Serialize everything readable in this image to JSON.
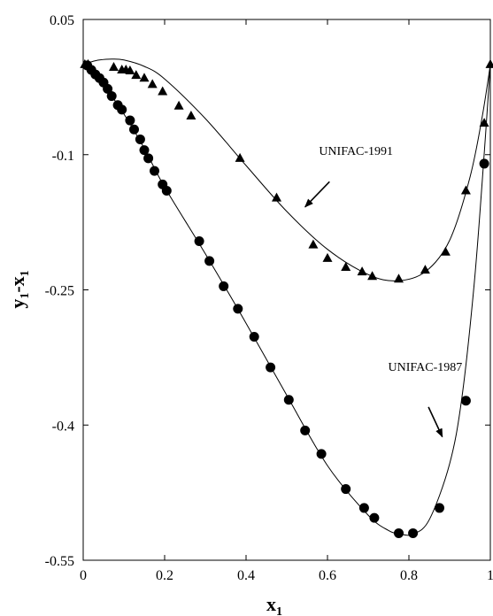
{
  "chart_data": {
    "type": "scatter",
    "xlabel": "x",
    "xlabel_sub": "1",
    "ylabel_parts": [
      "y",
      "1",
      "-x",
      "1"
    ],
    "xlim": [
      0,
      1
    ],
    "ylim": [
      -0.55,
      0.05
    ],
    "x_ticks": [
      {
        "value": 0,
        "label": "0"
      },
      {
        "value": 0.2,
        "label": "0.2"
      },
      {
        "value": 0.4,
        "label": "0.4"
      },
      {
        "value": 0.6,
        "label": "0.6"
      },
      {
        "value": 0.8,
        "label": "0.8"
      },
      {
        "value": 1,
        "label": "1"
      }
    ],
    "y_ticks": [
      {
        "value": 0.05,
        "label": "0.05"
      },
      {
        "value": -0.1,
        "label": "-0.1"
      },
      {
        "value": -0.25,
        "label": "-0.25"
      },
      {
        "value": -0.4,
        "label": "-0.4"
      },
      {
        "value": -0.55,
        "label": "-0.55"
      }
    ],
    "grid": false,
    "legend": "none",
    "series": [
      {
        "marker": "triangle",
        "points": [
          [
            0.004,
            0.0
          ],
          [
            0.012,
            0.0
          ],
          [
            0.075,
            -0.003
          ],
          [
            0.095,
            -0.006
          ],
          [
            0.105,
            -0.006
          ],
          [
            0.115,
            -0.007
          ],
          [
            0.13,
            -0.012
          ],
          [
            0.15,
            -0.015
          ],
          [
            0.17,
            -0.022
          ],
          [
            0.195,
            -0.03
          ],
          [
            0.235,
            -0.046
          ],
          [
            0.265,
            -0.057
          ],
          [
            0.385,
            -0.104
          ],
          [
            0.475,
            -0.148
          ],
          [
            0.565,
            -0.2
          ],
          [
            0.6,
            -0.215
          ],
          [
            0.645,
            -0.225
          ],
          [
            0.685,
            -0.23
          ],
          [
            0.71,
            -0.235
          ],
          [
            0.775,
            -0.238
          ],
          [
            0.84,
            -0.228
          ],
          [
            0.89,
            -0.208
          ],
          [
            0.94,
            -0.14
          ],
          [
            0.985,
            -0.065
          ],
          [
            1.0,
            0.0
          ]
        ]
      },
      {
        "marker": "circle",
        "points": [
          [
            0.01,
            -0.001
          ],
          [
            0.02,
            -0.006
          ],
          [
            0.03,
            -0.011
          ],
          [
            0.04,
            -0.015
          ],
          [
            0.05,
            -0.02
          ],
          [
            0.06,
            -0.027
          ],
          [
            0.07,
            -0.035
          ],
          [
            0.085,
            -0.045
          ],
          [
            0.095,
            -0.05
          ],
          [
            0.115,
            -0.062
          ],
          [
            0.125,
            -0.072
          ],
          [
            0.14,
            -0.083
          ],
          [
            0.15,
            -0.095
          ],
          [
            0.16,
            -0.104
          ],
          [
            0.175,
            -0.118
          ],
          [
            0.195,
            -0.133
          ],
          [
            0.205,
            -0.14
          ],
          [
            0.285,
            -0.196
          ],
          [
            0.31,
            -0.218
          ],
          [
            0.345,
            -0.246
          ],
          [
            0.38,
            -0.271
          ],
          [
            0.42,
            -0.302
          ],
          [
            0.46,
            -0.336
          ],
          [
            0.505,
            -0.372
          ],
          [
            0.545,
            -0.406
          ],
          [
            0.585,
            -0.432
          ],
          [
            0.645,
            -0.471
          ],
          [
            0.69,
            -0.492
          ],
          [
            0.715,
            -0.503
          ],
          [
            0.775,
            -0.52
          ],
          [
            0.81,
            -0.52
          ],
          [
            0.875,
            -0.492
          ],
          [
            0.94,
            -0.373
          ],
          [
            0.985,
            -0.11
          ]
        ]
      }
    ],
    "curves": [
      {
        "points": [
          [
            0,
            0
          ],
          [
            0.02,
            0.003
          ],
          [
            0.04,
            0.005
          ],
          [
            0.07,
            0.006
          ],
          [
            0.1,
            0.005
          ],
          [
            0.15,
            -0.002
          ],
          [
            0.2,
            -0.016
          ],
          [
            0.3,
            -0.06
          ],
          [
            0.4,
            -0.112
          ],
          [
            0.5,
            -0.163
          ],
          [
            0.6,
            -0.205
          ],
          [
            0.7,
            -0.233
          ],
          [
            0.77,
            -0.24
          ],
          [
            0.84,
            -0.23
          ],
          [
            0.9,
            -0.195
          ],
          [
            0.95,
            -0.125
          ],
          [
            0.98,
            -0.058
          ],
          [
            1.0,
            0
          ]
        ]
      },
      {
        "points": [
          [
            0,
            0
          ],
          [
            0.05,
            -0.023
          ],
          [
            0.1,
            -0.055
          ],
          [
            0.15,
            -0.093
          ],
          [
            0.2,
            -0.136
          ],
          [
            0.3,
            -0.21
          ],
          [
            0.4,
            -0.287
          ],
          [
            0.5,
            -0.367
          ],
          [
            0.6,
            -0.445
          ],
          [
            0.7,
            -0.5
          ],
          [
            0.75,
            -0.517
          ],
          [
            0.78,
            -0.521
          ],
          [
            0.81,
            -0.521
          ],
          [
            0.85,
            -0.505
          ],
          [
            0.9,
            -0.443
          ],
          [
            0.93,
            -0.37
          ],
          [
            0.96,
            -0.245
          ],
          [
            0.98,
            -0.13
          ],
          [
            1.0,
            0
          ]
        ]
      }
    ],
    "annotations": [
      {
        "text": "UNIFAC-1991",
        "x": 0.67,
        "y": -0.1,
        "arrow_from": [
          0.605,
          -0.13
        ],
        "arrow_to": [
          0.545,
          -0.158
        ]
      },
      {
        "text": "UNIFAC-1987",
        "x": 0.84,
        "y": -0.34,
        "arrow_from": [
          0.848,
          -0.38
        ],
        "arrow_to": [
          0.882,
          -0.413
        ]
      }
    ]
  }
}
